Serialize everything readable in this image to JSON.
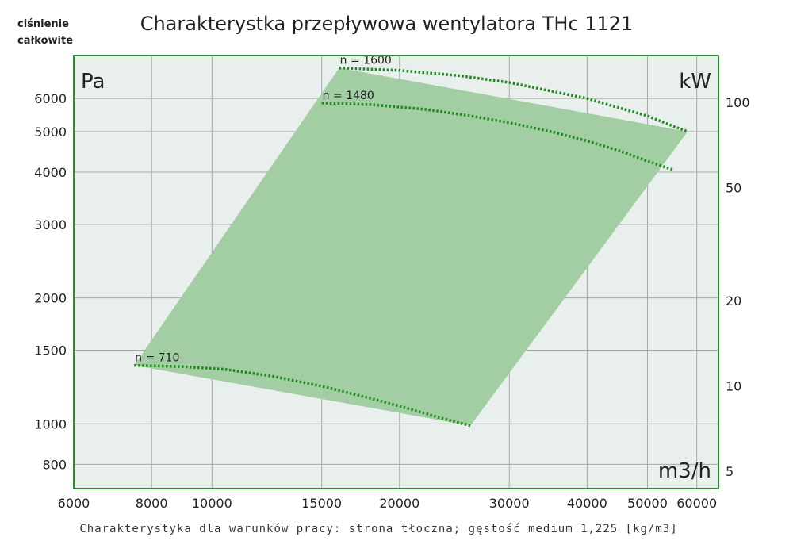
{
  "header": {
    "y_caption_line1": "ciśnienie",
    "y_caption_line2": "całkowite",
    "title": "Charakterystka przepływowa wentylatora THc 1121"
  },
  "footer": {
    "note": "Charakterystyka dla warunków pracy: strona tłoczna; gęstość medium 1,225 [kg/m3]"
  },
  "colors": {
    "plot_bg": "#e8efec",
    "frame": "#2e8b2e",
    "grid": "#a8a8a8",
    "region_fill": "#a3cda3",
    "curve": "#1f8a1f",
    "text": "#222222"
  },
  "chart_data": {
    "type": "area",
    "title": "Charakterystka przepływowa wentylatora THc 1121",
    "xlabel": "m3/h",
    "ylabel": "Pa",
    "y2label": "kW",
    "xscale": "log",
    "yscale": "log",
    "xlim": [
      6000,
      65000
    ],
    "ylim": [
      700,
      7600
    ],
    "x_ticks": [
      6000,
      8000,
      10000,
      15000,
      20000,
      30000,
      40000,
      50000,
      60000
    ],
    "x_tick_labels": [
      "6000",
      "8000",
      "10000",
      "15000",
      "20000",
      "30000",
      "40000",
      "50000",
      "60000"
    ],
    "y_ticks": [
      800,
      1000,
      1500,
      2000,
      3000,
      4000,
      5000,
      6000
    ],
    "y_tick_labels": [
      "800",
      "1000",
      "1500",
      "2000",
      "3000",
      "4000",
      "5000",
      "6000"
    ],
    "y2_ticks": [
      5,
      10,
      20,
      50,
      100
    ],
    "y2_tick_labels": [
      "5",
      "10",
      "20",
      "50",
      "100"
    ],
    "grid": true,
    "operating_region": [
      [
        7500,
        1380
      ],
      [
        16000,
        7100
      ],
      [
        58000,
        5000
      ],
      [
        26000,
        990
      ]
    ],
    "series": [
      {
        "name": "n = 1600",
        "x": [
          16000,
          20000,
          25000,
          30000,
          35000,
          40000,
          45000,
          50000,
          55000,
          58000
        ],
        "y": [
          7100,
          7000,
          6800,
          6550,
          6250,
          6000,
          5700,
          5450,
          5150,
          5000
        ]
      },
      {
        "name": "n = 1480",
        "x": [
          15000,
          18000,
          22000,
          26000,
          30000,
          35000,
          40000,
          45000,
          50000,
          55000
        ],
        "y": [
          5850,
          5800,
          5650,
          5450,
          5250,
          5000,
          4750,
          4500,
          4250,
          4050
        ]
      },
      {
        "name": "n = 710",
        "x": [
          7500,
          9000,
          10500,
          12500,
          15000,
          18000,
          21000,
          24000,
          26000
        ],
        "y": [
          1380,
          1370,
          1350,
          1300,
          1230,
          1150,
          1080,
          1020,
          990
        ]
      }
    ]
  }
}
